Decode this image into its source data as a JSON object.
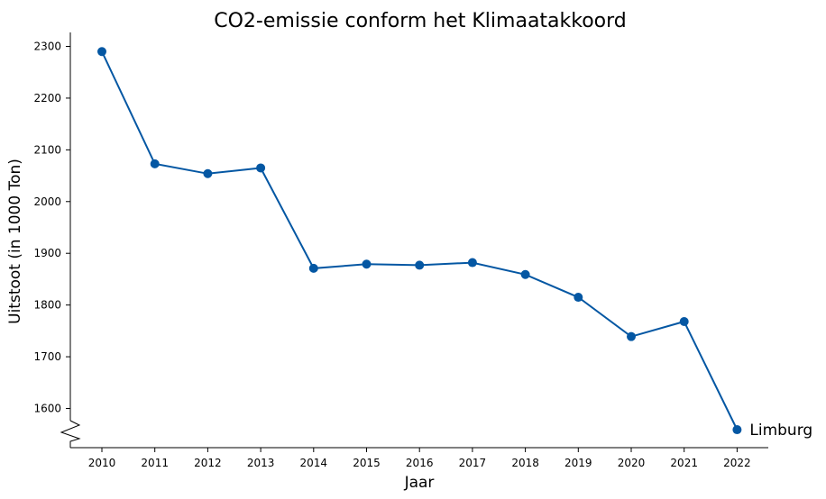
{
  "chart_data": {
    "type": "line",
    "title": "CO2-emissie conform het Klimaatakkoord",
    "xlabel": "Jaar",
    "ylabel": "Uitstoot (in 1000 Ton)",
    "x": [
      "2010",
      "2011",
      "2012",
      "2013",
      "2014",
      "2015",
      "2016",
      "2017",
      "2018",
      "2019",
      "2020",
      "2021",
      "2022"
    ],
    "yticks": [
      1600,
      1700,
      1800,
      1900,
      2000,
      2100,
      2200,
      2300
    ],
    "ylim": [
      1550,
      2325
    ],
    "axis_break": true,
    "grid": false,
    "series": [
      {
        "name": "Limburg",
        "color": "#0457a3",
        "values": [
          2290,
          2073,
          2054,
          2065,
          1871,
          1879,
          1877,
          1882,
          1859,
          1815,
          1739,
          1768,
          1559
        ]
      }
    ]
  }
}
